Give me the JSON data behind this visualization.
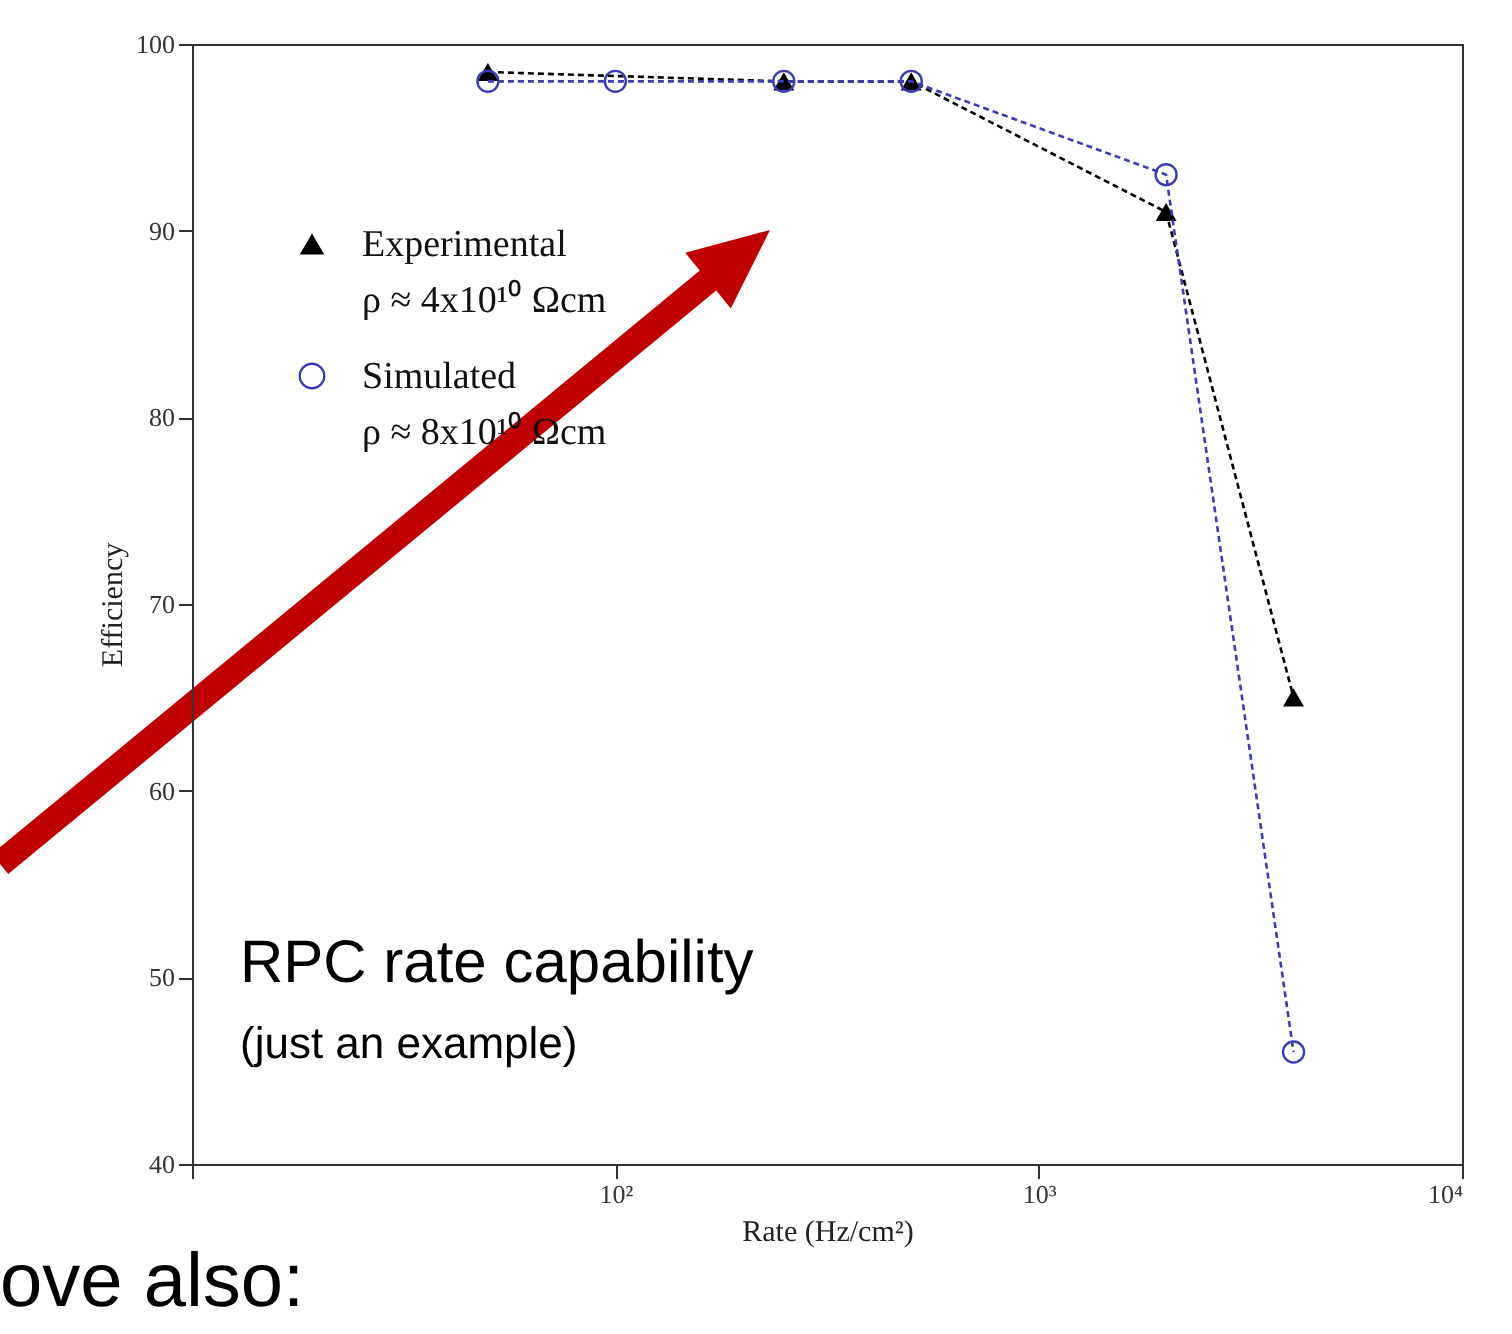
{
  "chart_data": {
    "type": "line",
    "xlabel": "Rate (Hz/cm²)",
    "ylabel": "Efficiency",
    "log": "x",
    "xlim": [
      10,
      10000
    ],
    "xticks": [
      {
        "value": 10,
        "label": null
      },
      {
        "value": 100,
        "label": "10²"
      },
      {
        "value": 1000,
        "label": "10³"
      },
      {
        "value": 10000,
        "label": "10⁴"
      }
    ],
    "ylim": [
      40,
      100
    ],
    "yticks": [
      40,
      50,
      60,
      70,
      80,
      90,
      100
    ],
    "grid": false,
    "legend": "top left",
    "line_style": "dashed",
    "series": [
      {
        "name": "Experimental\nρ ≈ 4x10¹⁰ Ωcm",
        "color": "#000000",
        "marker": "triangle",
        "x": [
          50,
          250,
          500,
          2000,
          4000
        ],
        "values": [
          98.5,
          98,
          98,
          91,
          65
        ]
      },
      {
        "name": "Simulated\nρ ≈ 8x10¹⁰ Ωcm",
        "color": "#3c3cb4",
        "marker": "circle",
        "x": [
          50,
          100,
          250,
          500,
          2000,
          4000
        ],
        "values": [
          98,
          98,
          98,
          98,
          93,
          46
        ]
      }
    ],
    "annotations": [
      "RPC rate capability",
      "(just an example)",
      "ove also:"
    ]
  }
}
